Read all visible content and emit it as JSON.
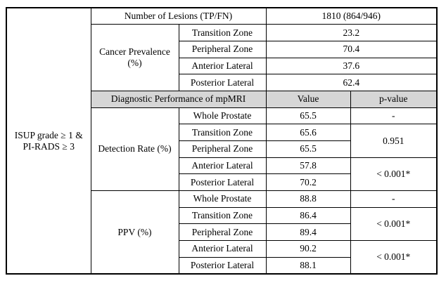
{
  "colors": {
    "header_bg": "#d6d6d6",
    "border": "#000000",
    "text": "#000000",
    "page_bg": "#ffffff"
  },
  "condition": {
    "line1": "ISUP grade ≥ 1 &",
    "line2": "PI-RADS ≥ 3"
  },
  "lesions": {
    "label": "Number of Lesions (TP/FN)",
    "value": "1810 (864/946)"
  },
  "cancer_prevalence": {
    "label_line1": "Cancer Prevalence",
    "label_line2": "(%)",
    "rows": [
      {
        "region": "Transition Zone",
        "value": "23.2"
      },
      {
        "region": "Peripheral Zone",
        "value": "70.4"
      },
      {
        "region": "Anterior Lateral",
        "value": "37.6"
      },
      {
        "region": "Posterior Lateral",
        "value": "62.4"
      }
    ]
  },
  "diagnostic_header": {
    "title": "Diagnostic Performance of mpMRI",
    "value_col": "Value",
    "pvalue_col": "p-value"
  },
  "detection_rate": {
    "label": "Detection Rate (%)",
    "rows": [
      {
        "region": "Whole Prostate",
        "value": "65.5"
      },
      {
        "region": "Transition Zone",
        "value": "65.6"
      },
      {
        "region": "Peripheral Zone",
        "value": "65.5"
      },
      {
        "region": "Anterior Lateral",
        "value": "57.8"
      },
      {
        "region": "Posterior Lateral",
        "value": "70.2"
      }
    ],
    "pvalues": {
      "whole_prostate": "-",
      "transition_peripheral": "0.951",
      "anterior_posterior": "< 0.001*"
    }
  },
  "ppv": {
    "label": "PPV (%)",
    "rows": [
      {
        "region": "Whole Prostate",
        "value": "88.8"
      },
      {
        "region": "Transition Zone",
        "value": "86.4"
      },
      {
        "region": "Peripheral Zone",
        "value": "89.4"
      },
      {
        "region": "Anterior Lateral",
        "value": "90.2"
      },
      {
        "region": "Posterior Lateral",
        "value": "88.1"
      }
    ],
    "pvalues": {
      "whole_prostate": "-",
      "transition_peripheral": "< 0.001*",
      "anterior_posterior": "< 0.001*"
    }
  }
}
